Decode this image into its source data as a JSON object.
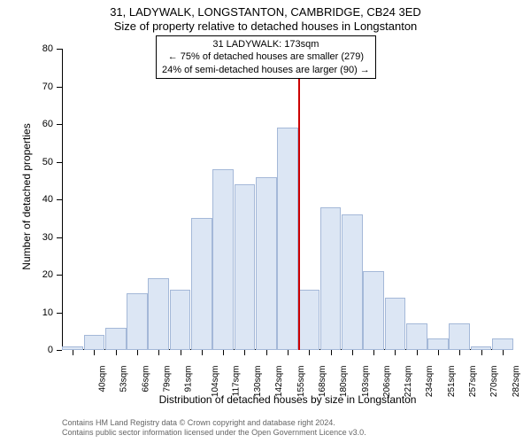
{
  "title1": "31, LADYWALK, LONGSTANTON, CAMBRIDGE, CB24 3ED",
  "title2": "Size of property relative to detached houses in Longstanton",
  "annotation": {
    "line1": "31 LADYWALK: 173sqm",
    "line2": "← 75% of detached houses are smaller (279)",
    "line3": "24% of semi-detached houses are larger (90) →"
  },
  "chart": {
    "type": "bar",
    "categories": [
      "40sqm",
      "53sqm",
      "66sqm",
      "79sqm",
      "91sqm",
      "104sqm",
      "117sqm",
      "130sqm",
      "142sqm",
      "155sqm",
      "168sqm",
      "180sqm",
      "193sqm",
      "206sqm",
      "221sqm",
      "234sqm",
      "251sqm",
      "257sqm",
      "270sqm",
      "282sqm",
      "295sqm"
    ],
    "values": [
      1,
      4,
      6,
      15,
      19,
      16,
      35,
      48,
      44,
      46,
      59,
      16,
      38,
      36,
      21,
      14,
      7,
      3,
      7,
      1,
      3
    ],
    "ylim": [
      0,
      80
    ],
    "ytick_step": 10,
    "bar_fill": "#dce6f4",
    "bar_stroke": "#a4b8d8",
    "background_color": "#ffffff",
    "ref_line_color": "#cc0000",
    "ref_line_index": 10,
    "y_axis_title": "Number of detached properties",
    "x_axis_title": "Distribution of detached houses by size in Longstanton"
  },
  "footer": {
    "line1": "Contains HM Land Registry data © Crown copyright and database right 2024.",
    "line2": "Contains public sector information licensed under the Open Government Licence v3.0."
  }
}
